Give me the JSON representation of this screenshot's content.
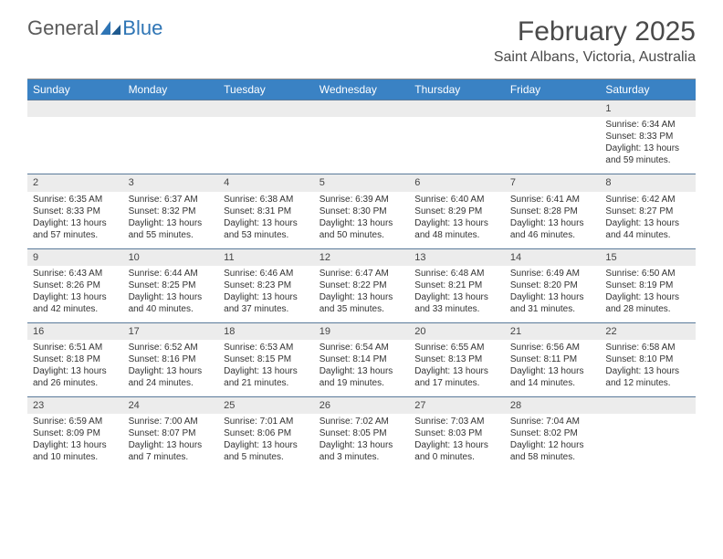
{
  "logo": {
    "general": "General",
    "blue": "Blue"
  },
  "title": "February 2025",
  "location": "Saint Albans, Victoria, Australia",
  "colors": {
    "header_bg": "#3a82c4",
    "header_text": "#ffffff",
    "daynum_bg": "#ececec",
    "border": "#5a7a9a",
    "logo_gray": "#5a5a5a",
    "logo_blue": "#2f75b5"
  },
  "day_names": [
    "Sunday",
    "Monday",
    "Tuesday",
    "Wednesday",
    "Thursday",
    "Friday",
    "Saturday"
  ],
  "weeks": [
    [
      {
        "n": "",
        "sr": "",
        "ss": "",
        "dl": ""
      },
      {
        "n": "",
        "sr": "",
        "ss": "",
        "dl": ""
      },
      {
        "n": "",
        "sr": "",
        "ss": "",
        "dl": ""
      },
      {
        "n": "",
        "sr": "",
        "ss": "",
        "dl": ""
      },
      {
        "n": "",
        "sr": "",
        "ss": "",
        "dl": ""
      },
      {
        "n": "",
        "sr": "",
        "ss": "",
        "dl": ""
      },
      {
        "n": "1",
        "sr": "Sunrise: 6:34 AM",
        "ss": "Sunset: 8:33 PM",
        "dl": "Daylight: 13 hours and 59 minutes."
      }
    ],
    [
      {
        "n": "2",
        "sr": "Sunrise: 6:35 AM",
        "ss": "Sunset: 8:33 PM",
        "dl": "Daylight: 13 hours and 57 minutes."
      },
      {
        "n": "3",
        "sr": "Sunrise: 6:37 AM",
        "ss": "Sunset: 8:32 PM",
        "dl": "Daylight: 13 hours and 55 minutes."
      },
      {
        "n": "4",
        "sr": "Sunrise: 6:38 AM",
        "ss": "Sunset: 8:31 PM",
        "dl": "Daylight: 13 hours and 53 minutes."
      },
      {
        "n": "5",
        "sr": "Sunrise: 6:39 AM",
        "ss": "Sunset: 8:30 PM",
        "dl": "Daylight: 13 hours and 50 minutes."
      },
      {
        "n": "6",
        "sr": "Sunrise: 6:40 AM",
        "ss": "Sunset: 8:29 PM",
        "dl": "Daylight: 13 hours and 48 minutes."
      },
      {
        "n": "7",
        "sr": "Sunrise: 6:41 AM",
        "ss": "Sunset: 8:28 PM",
        "dl": "Daylight: 13 hours and 46 minutes."
      },
      {
        "n": "8",
        "sr": "Sunrise: 6:42 AM",
        "ss": "Sunset: 8:27 PM",
        "dl": "Daylight: 13 hours and 44 minutes."
      }
    ],
    [
      {
        "n": "9",
        "sr": "Sunrise: 6:43 AM",
        "ss": "Sunset: 8:26 PM",
        "dl": "Daylight: 13 hours and 42 minutes."
      },
      {
        "n": "10",
        "sr": "Sunrise: 6:44 AM",
        "ss": "Sunset: 8:25 PM",
        "dl": "Daylight: 13 hours and 40 minutes."
      },
      {
        "n": "11",
        "sr": "Sunrise: 6:46 AM",
        "ss": "Sunset: 8:23 PM",
        "dl": "Daylight: 13 hours and 37 minutes."
      },
      {
        "n": "12",
        "sr": "Sunrise: 6:47 AM",
        "ss": "Sunset: 8:22 PM",
        "dl": "Daylight: 13 hours and 35 minutes."
      },
      {
        "n": "13",
        "sr": "Sunrise: 6:48 AM",
        "ss": "Sunset: 8:21 PM",
        "dl": "Daylight: 13 hours and 33 minutes."
      },
      {
        "n": "14",
        "sr": "Sunrise: 6:49 AM",
        "ss": "Sunset: 8:20 PM",
        "dl": "Daylight: 13 hours and 31 minutes."
      },
      {
        "n": "15",
        "sr": "Sunrise: 6:50 AM",
        "ss": "Sunset: 8:19 PM",
        "dl": "Daylight: 13 hours and 28 minutes."
      }
    ],
    [
      {
        "n": "16",
        "sr": "Sunrise: 6:51 AM",
        "ss": "Sunset: 8:18 PM",
        "dl": "Daylight: 13 hours and 26 minutes."
      },
      {
        "n": "17",
        "sr": "Sunrise: 6:52 AM",
        "ss": "Sunset: 8:16 PM",
        "dl": "Daylight: 13 hours and 24 minutes."
      },
      {
        "n": "18",
        "sr": "Sunrise: 6:53 AM",
        "ss": "Sunset: 8:15 PM",
        "dl": "Daylight: 13 hours and 21 minutes."
      },
      {
        "n": "19",
        "sr": "Sunrise: 6:54 AM",
        "ss": "Sunset: 8:14 PM",
        "dl": "Daylight: 13 hours and 19 minutes."
      },
      {
        "n": "20",
        "sr": "Sunrise: 6:55 AM",
        "ss": "Sunset: 8:13 PM",
        "dl": "Daylight: 13 hours and 17 minutes."
      },
      {
        "n": "21",
        "sr": "Sunrise: 6:56 AM",
        "ss": "Sunset: 8:11 PM",
        "dl": "Daylight: 13 hours and 14 minutes."
      },
      {
        "n": "22",
        "sr": "Sunrise: 6:58 AM",
        "ss": "Sunset: 8:10 PM",
        "dl": "Daylight: 13 hours and 12 minutes."
      }
    ],
    [
      {
        "n": "23",
        "sr": "Sunrise: 6:59 AM",
        "ss": "Sunset: 8:09 PM",
        "dl": "Daylight: 13 hours and 10 minutes."
      },
      {
        "n": "24",
        "sr": "Sunrise: 7:00 AM",
        "ss": "Sunset: 8:07 PM",
        "dl": "Daylight: 13 hours and 7 minutes."
      },
      {
        "n": "25",
        "sr": "Sunrise: 7:01 AM",
        "ss": "Sunset: 8:06 PM",
        "dl": "Daylight: 13 hours and 5 minutes."
      },
      {
        "n": "26",
        "sr": "Sunrise: 7:02 AM",
        "ss": "Sunset: 8:05 PM",
        "dl": "Daylight: 13 hours and 3 minutes."
      },
      {
        "n": "27",
        "sr": "Sunrise: 7:03 AM",
        "ss": "Sunset: 8:03 PM",
        "dl": "Daylight: 13 hours and 0 minutes."
      },
      {
        "n": "28",
        "sr": "Sunrise: 7:04 AM",
        "ss": "Sunset: 8:02 PM",
        "dl": "Daylight: 12 hours and 58 minutes."
      },
      {
        "n": "",
        "sr": "",
        "ss": "",
        "dl": ""
      }
    ]
  ]
}
